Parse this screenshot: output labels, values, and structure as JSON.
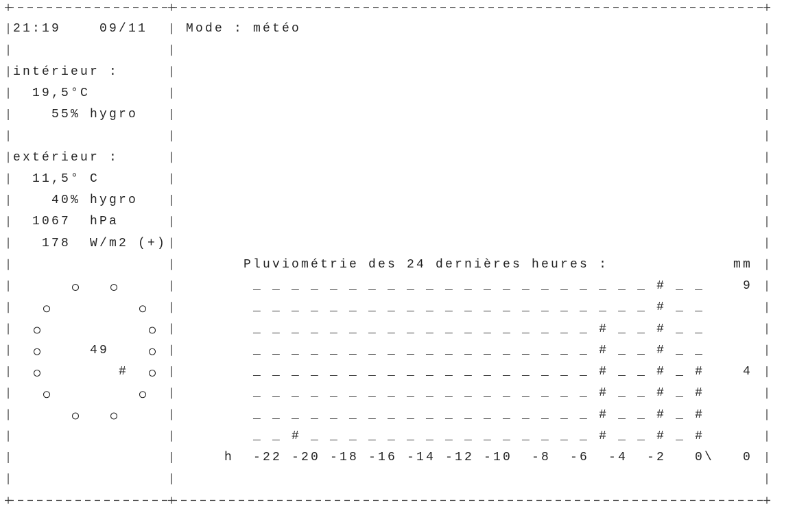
{
  "header": {
    "time": "21:19",
    "date": "09/11"
  },
  "mode": "Mode : météo",
  "interior": {
    "label": "intérieur :",
    "temperature": "19,5°C",
    "humidity": "55% hygro"
  },
  "exterior": {
    "label": "extérieur :",
    "temperature": "11,5° C",
    "humidity": "40% hygro",
    "pressure": "1067  hPa",
    "radiation": "178  W/m2 (+)"
  },
  "compass": {
    "value": 49,
    "pointer": "#"
  },
  "rain": {
    "title": "Pluviométrie des 24 dernières heures :",
    "unit": "mm",
    "rows": [
      "_ _ _ _ _ _ _ _ _ _ _ _ _ _ _ _ _ _ _ _ _ # _ _",
      "_ _ _ _ _ _ _ _ _ _ _ _ _ _ _ _ _ _ _ _ _ # _ _",
      "_ _ _ _ _ _ _ _ _ _ _ _ _ _ _ _ _ _ # _ _ # _ _",
      "_ _ _ _ _ _ _ _ _ _ _ _ _ _ _ _ _ _ # _ _ # _ _",
      "_ _ _ _ _ _ _ _ _ _ _ _ _ _ _ _ _ _ # _ _ # _ #",
      "_ _ _ _ _ _ _ _ _ _ _ _ _ _ _ _ _ _ # _ _ # _ #",
      "_ _ _ _ _ _ _ _ _ _ _ _ _ _ _ _ _ _ # _ _ # _ #",
      "_ _ # _ _ _ _ _ _ _ _ _ _ _ _ _ _ _ # _ _ # _ #"
    ],
    "y_labels": [
      9,
      4,
      0
    ],
    "x_label": "h",
    "x_labels": [
      -22,
      -20,
      -18,
      -16,
      -14,
      -12,
      -10,
      -8,
      -6,
      -4,
      -2,
      "0\\"
    ]
  }
}
